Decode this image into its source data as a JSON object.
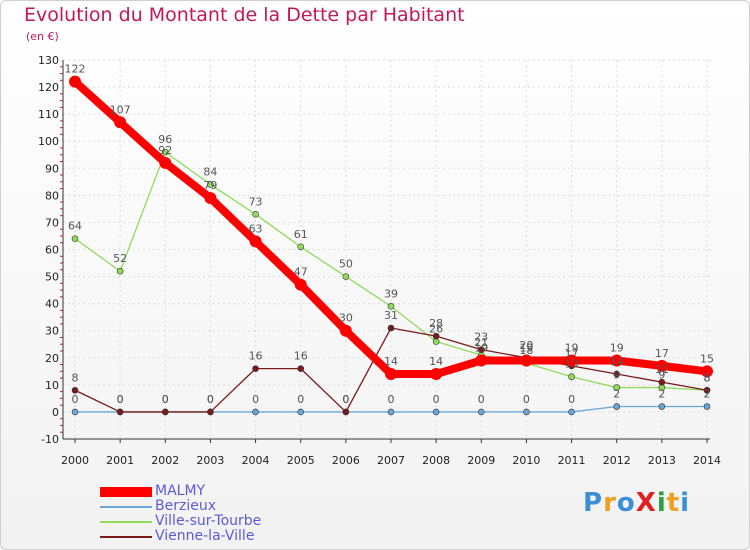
{
  "title": "Evolution du Montant de la Dette par Habitant",
  "subtitle": "(en €)",
  "logo": {
    "text": "ProXiti",
    "letters": [
      "P",
      "r",
      "o",
      "X",
      "i",
      "t",
      "i"
    ],
    "colors": [
      "#3b8fd6",
      "#f0a020",
      "#3b8fd6",
      "#e02020",
      "#2aa040",
      "#f0a020",
      "#3b8fd6"
    ]
  },
  "chart_data": {
    "type": "line",
    "title": "Evolution du Montant de la Dette par Habitant",
    "ylabel": "(en €)",
    "x": [
      "2000",
      "2001",
      "2002",
      "2003",
      "2004",
      "2005",
      "2006",
      "2007",
      "2008",
      "2009",
      "2010",
      "2011",
      "2012",
      "2013",
      "2014"
    ],
    "ylim": [
      -10,
      130
    ],
    "yticks": [
      -10,
      0,
      10,
      20,
      30,
      40,
      50,
      60,
      70,
      80,
      90,
      100,
      110,
      120,
      130
    ],
    "grid": true,
    "legend_position": "bottom-left",
    "series": [
      {
        "name": "MALMY",
        "color": "#ff0000",
        "width": 8,
        "marker": 6,
        "values": [
          122,
          107,
          92,
          79,
          63,
          47,
          30,
          14,
          14,
          19,
          19,
          19,
          19,
          17,
          15
        ]
      },
      {
        "name": "Berzieux",
        "color": "#6aa6d8",
        "width": 1.3,
        "marker": 3,
        "values": [
          0,
          0,
          0,
          0,
          0,
          0,
          0,
          0,
          0,
          0,
          0,
          0,
          2,
          2,
          2
        ]
      },
      {
        "name": "Ville-sur-Tourbe",
        "color": "#8fdc5a",
        "width": 1.3,
        "marker": 3,
        "values": [
          64,
          52,
          96,
          84,
          73,
          61,
          50,
          39,
          26,
          21,
          18,
          13,
          9,
          9,
          8
        ]
      },
      {
        "name": "Vienne-la-Ville",
        "color": "#7a1a1a",
        "width": 1.3,
        "marker": 3,
        "values": [
          8,
          0,
          0,
          0,
          16,
          16,
          0,
          31,
          28,
          23,
          20,
          17,
          14,
          11,
          8
        ]
      }
    ]
  }
}
